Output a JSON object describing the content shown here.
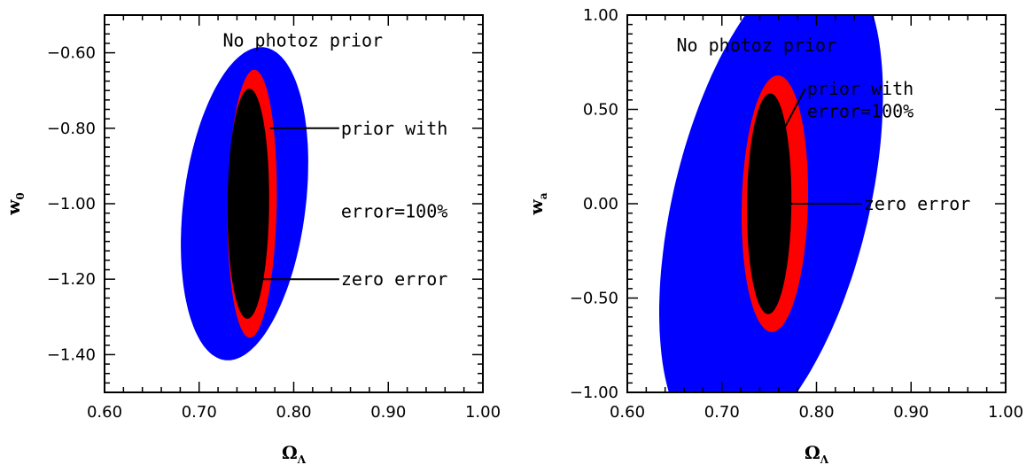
{
  "chart_data": [
    {
      "type": "contour",
      "title": "",
      "xlabel": "Ω",
      "xlabel_sub": "Λ",
      "ylabel": "w",
      "ylabel_sub": "0",
      "xlim": [
        0.6,
        1.0
      ],
      "ylim": [
        -1.5,
        -0.5
      ],
      "xticks": [
        "0.60",
        "0.70",
        "0.80",
        "0.90",
        "1.00"
      ],
      "yticks": [
        "−0.60",
        "−0.80",
        "−1.00",
        "−1.20",
        "−1.40"
      ],
      "ytick_values": [
        -0.6,
        -0.8,
        -1.0,
        -1.2,
        -1.4
      ],
      "xtick_values": [
        0.6,
        0.7,
        0.8,
        0.9,
        1.0
      ],
      "regions": [
        {
          "label": "No photoz prior",
          "color": "#0000ff",
          "center": [
            0.748,
            -1.0
          ],
          "x_range": [
            0.683,
            0.813
          ],
          "y_range": [
            -1.415,
            -0.585
          ],
          "tilt": -0.3
        },
        {
          "label": "prior with error=100%",
          "color": "#ff0000",
          "center": [
            0.756,
            -1.0
          ],
          "x_range": [
            0.73,
            0.782
          ],
          "y_range": [
            -1.355,
            -0.645
          ],
          "tilt": -0.1
        },
        {
          "label": "zero error",
          "color": "#000000",
          "center": [
            0.752,
            -1.0
          ],
          "x_range": [
            0.73,
            0.774
          ],
          "y_range": [
            -1.305,
            -0.695
          ],
          "tilt": -0.05
        }
      ],
      "annotations": [
        {
          "lines": [
            "No photoz prior"
          ],
          "x": 0.725,
          "y": -0.567
        },
        {
          "lines": [
            "prior with",
            "error=100%"
          ],
          "x": 0.85,
          "y": -0.8,
          "pointer_to": [
            0.775,
            -0.8
          ],
          "line_gap": -0.22
        },
        {
          "lines": [
            "zero error"
          ],
          "x": 0.85,
          "y": -1.2,
          "pointer_to": [
            0.765,
            -1.2
          ]
        }
      ]
    },
    {
      "type": "contour",
      "title": "",
      "xlabel": "Ω",
      "xlabel_sub": "Λ",
      "ylabel": "w",
      "ylabel_sub": "a",
      "xlim": [
        0.6,
        1.0
      ],
      "ylim": [
        -1.0,
        1.0
      ],
      "xticks": [
        "0.60",
        "0.70",
        "0.80",
        "0.90",
        "1.00"
      ],
      "yticks": [
        "1.00",
        "0.50",
        "0.00",
        "−0.50",
        "−1.00"
      ],
      "ytick_values": [
        1.0,
        0.5,
        0.0,
        -0.5,
        -1.0
      ],
      "xtick_values": [
        0.6,
        0.7,
        0.8,
        0.9,
        1.0
      ],
      "regions": [
        {
          "label": "No photoz prior",
          "color": "#0000ff",
          "center": [
            0.752,
            0.0
          ],
          "x_range": [
            0.64,
            0.852
          ],
          "y_range": [
            -1.3,
            1.3
          ],
          "tilt": -0.55
        },
        {
          "label": "prior with error=100%",
          "color": "#ff0000",
          "center": [
            0.756,
            0.0
          ],
          "x_range": [
            0.72,
            0.79
          ],
          "y_range": [
            -0.68,
            0.68
          ],
          "tilt": -0.1
        },
        {
          "label": "zero error",
          "color": "#000000",
          "center": [
            0.75,
            0.0
          ],
          "x_range": [
            0.727,
            0.774
          ],
          "y_range": [
            -0.585,
            0.585
          ],
          "tilt": -0.05
        }
      ],
      "annotations": [
        {
          "lines": [
            "No photoz prior"
          ],
          "x": 0.652,
          "y": 0.84
        },
        {
          "lines": [
            "prior with",
            "error=100%"
          ],
          "x": 0.79,
          "y": 0.61,
          "pointer_to": [
            0.766,
            0.4
          ],
          "line_gap": -0.12
        },
        {
          "lines": [
            "zero error"
          ],
          "x": 0.85,
          "y": 0.0,
          "pointer_to": [
            0.77,
            0.0
          ]
        }
      ]
    }
  ]
}
